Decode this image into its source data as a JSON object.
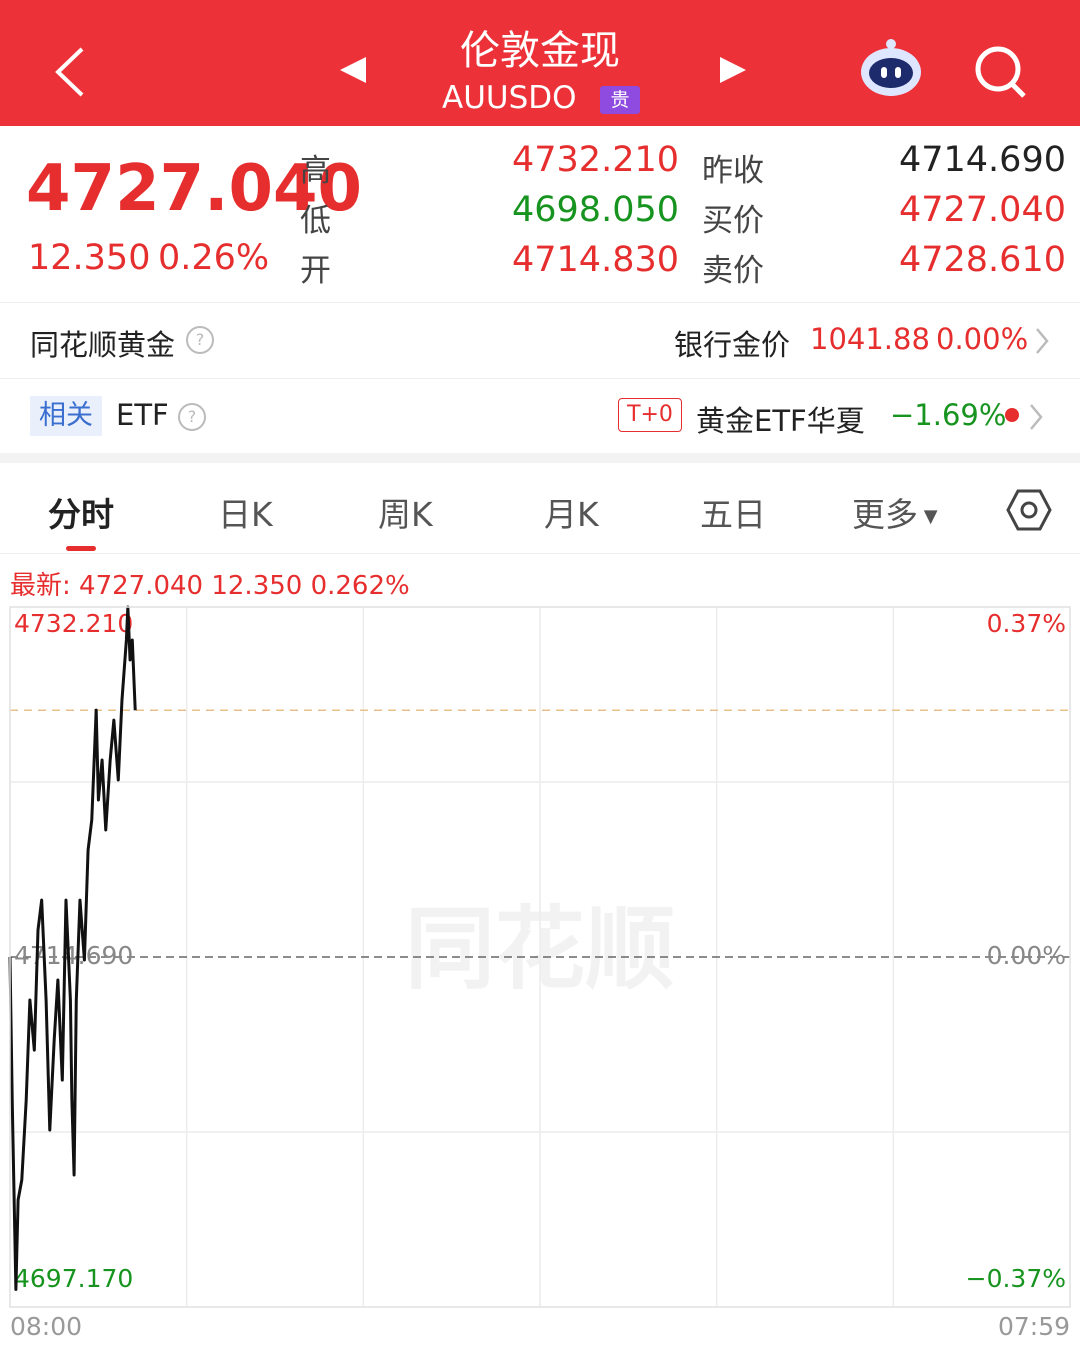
{
  "header": {
    "title": "伦敦金现",
    "code": "AUUSDO",
    "badge": "贵"
  },
  "quote": {
    "price": "4727.040",
    "change": "12.350",
    "change_pct": "0.26%",
    "stats": [
      {
        "label": "高",
        "value": "4732.210"
      },
      {
        "label": "低",
        "value": "4698.050"
      },
      {
        "label": "开",
        "value": "4714.830"
      },
      {
        "label": "昨收",
        "value": "4714.690"
      },
      {
        "label": "买价",
        "value": "4727.040"
      },
      {
        "label": "卖价",
        "value": "4728.610"
      }
    ]
  },
  "gold_row": {
    "name": "同花顺黄金",
    "label": "银行金价",
    "price": "1041.88",
    "pct": "0.00%"
  },
  "etf_row": {
    "tag": "相关",
    "name": "ETF",
    "badge": "T+0",
    "fund": "黄金ETF华夏",
    "pct": "−1.69%"
  },
  "tabs": [
    "分时",
    "日K",
    "周K",
    "月K",
    "五日",
    "更多"
  ],
  "chart_data": {
    "type": "line",
    "subtitle": "最新: 4727.040  12.350  0.262%",
    "watermark": "同花顺",
    "color": "#111111",
    "x": [
      0,
      3,
      8,
      11,
      16,
      22,
      27,
      33,
      38,
      43,
      49,
      54,
      60,
      65,
      71,
      76,
      82,
      84,
      87,
      90,
      95,
      101,
      106,
      111,
      117,
      120,
      125,
      130,
      136,
      141,
      147,
      152,
      158,
      160,
      163,
      166,
      170
    ],
    "values": [
      4714.69,
      4707.53,
      4698.05,
      4702.53,
      4703.53,
      4707.53,
      4712.54,
      4710.03,
      4716.04,
      4717.54,
      4712.54,
      4706.03,
      4710.54,
      4713.54,
      4708.53,
      4717.54,
      4712.54,
      4707.53,
      4703.78,
      4712.54,
      4717.54,
      4714.54,
      4720.05,
      4721.55,
      4727.05,
      4722.55,
      4724.55,
      4721.05,
      4724.55,
      4726.55,
      4723.55,
      4727.55,
      4730.56,
      4732.21,
      4729.56,
      4730.56,
      4727.04
    ],
    "xlim": [
      0,
      1439
    ],
    "xticks": [
      {
        "value": 0,
        "label": "08:00"
      },
      {
        "value": 1439,
        "label": "07:59"
      }
    ],
    "ylim": [
      4697.17,
      4732.21
    ],
    "yticks": [
      {
        "value": 4732.21,
        "label": "4732.210"
      },
      {
        "value": 4714.69,
        "label": "4714.690"
      },
      {
        "value": 4697.17,
        "label": "4697.170"
      }
    ],
    "y2lim": [
      -0.37,
      0.37
    ],
    "y2ticks": [
      {
        "value": 0.37,
        "label": "0.37%"
      },
      {
        "value": 0,
        "label": "0.00%"
      },
      {
        "value": -0.37,
        "label": "−0.37%"
      }
    ],
    "grid": true
  }
}
